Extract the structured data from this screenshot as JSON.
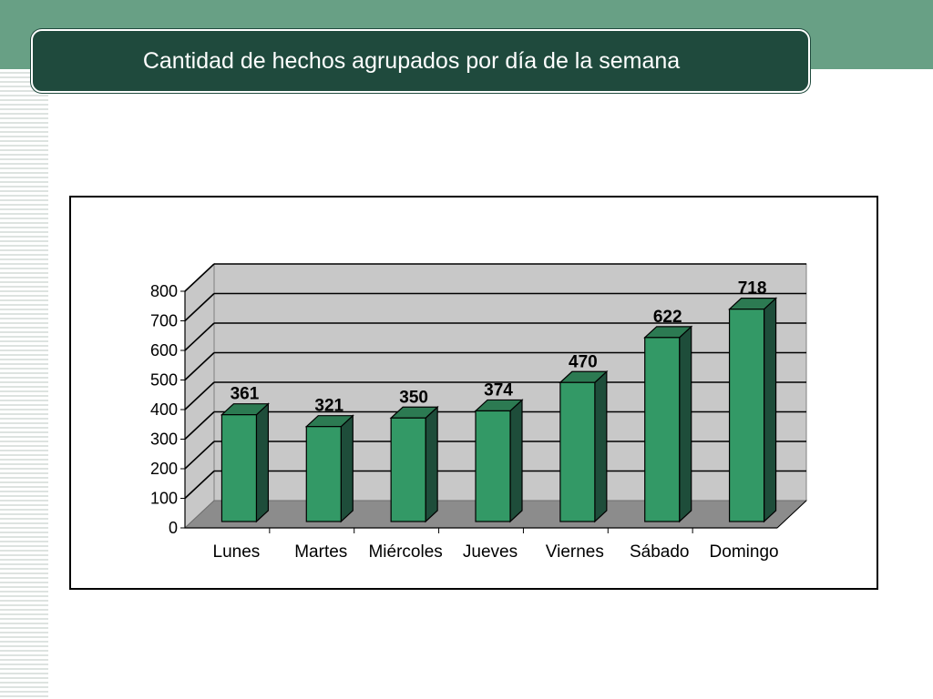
{
  "slide": {
    "title": "Cantidad de hechos agrupados por día de la semana"
  },
  "chart_data": {
    "type": "bar",
    "style": "3d-column",
    "categories": [
      "Lunes",
      "Martes",
      "Miércoles",
      "Jueves",
      "Viernes",
      "Sábado",
      "Domingo"
    ],
    "values": [
      361,
      321,
      350,
      374,
      470,
      622,
      718
    ],
    "ylim": [
      0,
      800
    ],
    "yticks": [
      0,
      100,
      200,
      300,
      400,
      500,
      600,
      700,
      800
    ],
    "grid": true,
    "legend": "none",
    "data_labels": true
  },
  "colors": {
    "band": "#68a085",
    "title_box": "#1f4a3d",
    "bar_front": "#339966",
    "bar_side": "#1e4d3a",
    "bar_top": "#2c7a52",
    "wall": "#c8c8c8",
    "floor": "#8c8c8c"
  }
}
